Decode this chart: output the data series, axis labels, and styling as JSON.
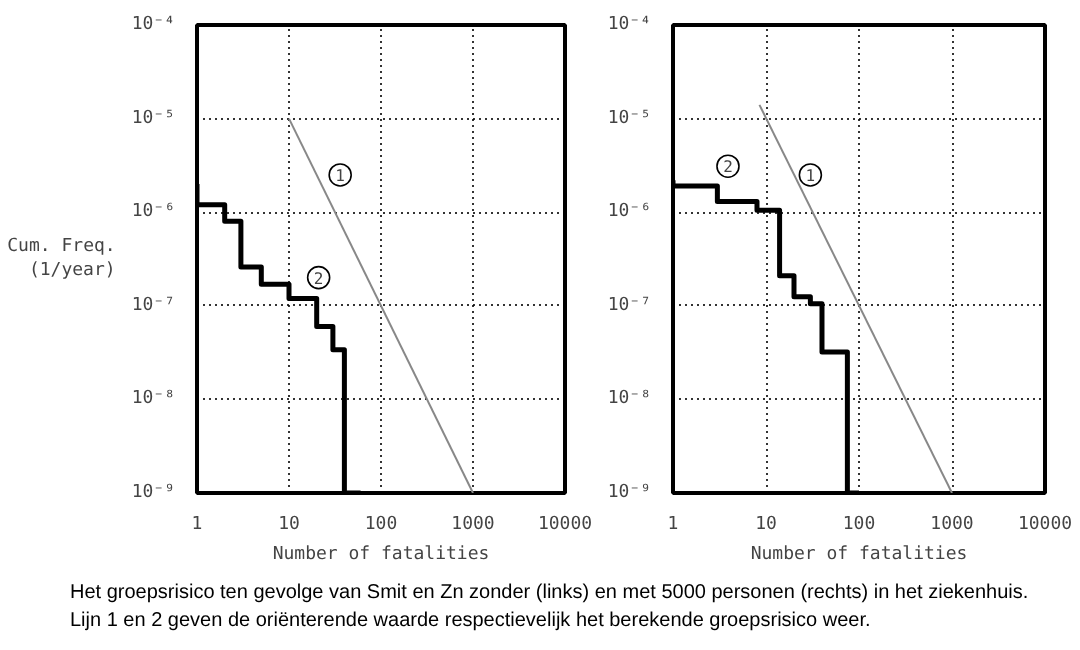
{
  "chart_data": [
    {
      "type": "step",
      "xlabel": "Number of fatalities",
      "ylabel": "Cum. Freq.\n(1/year)",
      "log": "xy",
      "grid": true,
      "xlim": [
        1,
        10000
      ],
      "ylim": [
        1e-09,
        0.0001
      ],
      "xticks": [
        1,
        10,
        100,
        1000,
        10000
      ],
      "yticks": [
        {
          "value": 1e-09,
          "label": "10⁻⁹"
        },
        {
          "value": 1e-08,
          "label": "10⁻⁸"
        },
        {
          "value": 1e-07,
          "label": "10⁻⁷"
        },
        {
          "value": 1e-06,
          "label": "10⁻⁶"
        },
        {
          "value": 1e-05,
          "label": "10⁻⁵"
        },
        {
          "value": 0.0001,
          "label": "10⁻⁴"
        }
      ],
      "series": [
        {
          "type": "line",
          "color": "#888888",
          "x": [
            10,
            1000
          ],
          "values": [
            1e-05,
            1e-09
          ]
        },
        {
          "color": "#000000",
          "x": [
            1,
            1,
            2,
            3,
            5,
            10,
            20,
            30,
            40,
            60
          ],
          "values": [
            2e-06,
            1.2e-06,
            8e-07,
            2.6e-07,
            1.7e-07,
            1.2e-07,
            6e-08,
            3.4e-08,
            1e-09,
            1e-09
          ]
        }
      ],
      "annotations": [
        {
          "text": "1",
          "x": 36,
          "y": 2.5e-06
        },
        {
          "text": "2",
          "x": 21,
          "y": 2e-07
        },
        "Het groepsrisico ten gevolge van Smit en Zn zonder (links) en met 5000 personen (rechts) in het ziekenhuis.",
        "Lijn 1 en 2 geven de oriënterende waarde respectievelijk het berekende groepsrisico weer."
      ]
    },
    {
      "type": "step",
      "xlabel": "Number of fatalities",
      "log": "xy",
      "grid": true,
      "xlim": [
        1,
        10000
      ],
      "ylim": [
        1e-09,
        0.0001
      ],
      "xticks": [
        1,
        10,
        100,
        1000,
        10000
      ],
      "yticks": [
        {
          "value": 1e-09,
          "label": "10⁻⁹"
        },
        {
          "value": 1e-08,
          "label": "10⁻⁸"
        },
        {
          "value": 1e-07,
          "label": "10⁻⁷"
        },
        {
          "value": 1e-06,
          "label": "10⁻⁶"
        },
        {
          "value": 1e-05,
          "label": "10⁻⁵"
        },
        {
          "value": 0.0001,
          "label": "10⁻⁴"
        }
      ],
      "series": [
        {
          "type": "line",
          "color": "#888888",
          "x": [
            8.5,
            1000
          ],
          "values": [
            1.4e-05,
            1e-09
          ]
        },
        {
          "color": "#000000",
          "x": [
            1,
            1,
            3,
            8,
            14,
            20,
            30,
            40,
            75,
            100
          ],
          "values": [
            2.2e-06,
            1.9e-06,
            1.3e-06,
            1.05e-06,
            2.1e-07,
            1.25e-07,
            1.05e-07,
            3.2e-08,
            1e-09,
            1e-09
          ]
        }
      ],
      "annotations": [
        {
          "text": "2",
          "x": 3.9,
          "y": 3.1e-06
        },
        {
          "text": "1",
          "x": 30,
          "y": 2.5e-06
        }
      ]
    }
  ]
}
